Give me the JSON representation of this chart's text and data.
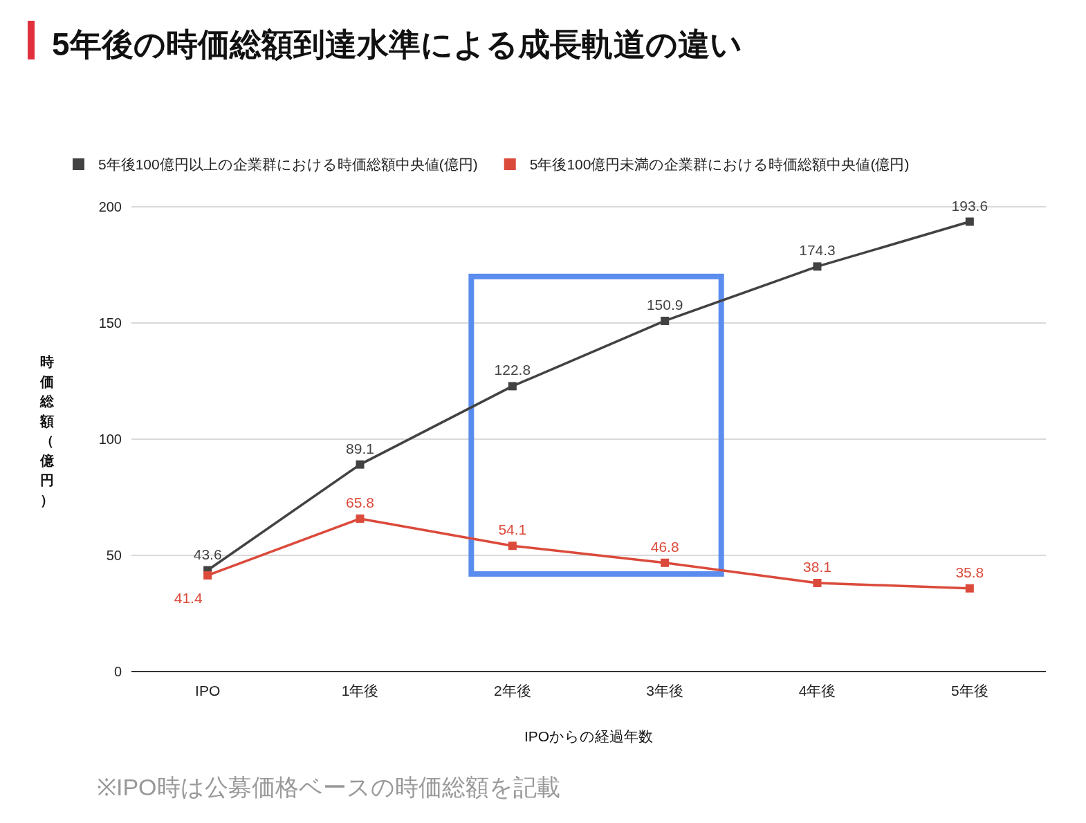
{
  "chart_data": {
    "type": "line",
    "title": "5年後の時価総額到達水準による成長軌道の違い",
    "xlabel": "IPOからの経過年数",
    "ylabel": "時価総額（億円）",
    "categories": [
      "IPO",
      "1年後",
      "2年後",
      "3年後",
      "4年後",
      "5年後"
    ],
    "series": [
      {
        "name": "5年後100億円以上の企業群における時価総額中央値(億円)",
        "color": "#424242",
        "values": [
          43.6,
          89.1,
          122.8,
          150.9,
          174.3,
          193.6
        ]
      },
      {
        "name": "5年後100億円未満の企業群における時価総額中央値(億円)",
        "color": "#db4a3b",
        "values": [
          41.4,
          65.8,
          54.1,
          46.8,
          38.1,
          35.8
        ]
      }
    ],
    "ylim": [
      0,
      200
    ],
    "yticks": [
      0,
      50,
      100,
      150,
      200
    ],
    "grid": "y",
    "legend": "top",
    "marker": "square",
    "line_style": "solid",
    "data_labels": true,
    "annotations": [
      "※IPO時は公募価格ベースの時価総額を記載"
    ]
  }
}
